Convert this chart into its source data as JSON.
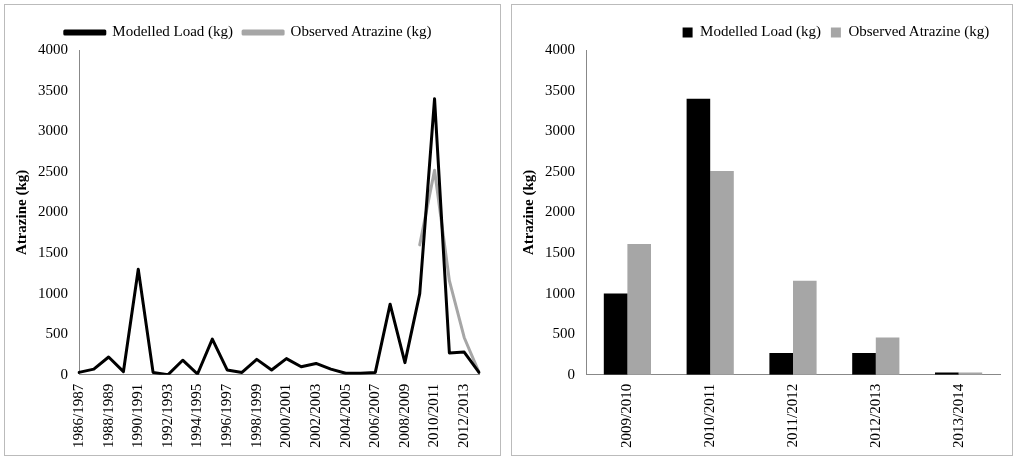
{
  "chart_data": [
    {
      "type": "line",
      "ylabel": "Atrazine (kg)",
      "categories": [
        "1986/1987",
        null,
        "1988/1989",
        null,
        "1990/1991",
        null,
        "1992/1993",
        null,
        "1994/1995",
        null,
        "1996/1997",
        null,
        "1998/1999",
        null,
        "2000/2001",
        null,
        "2002/2003",
        null,
        "2004/2005",
        null,
        "2006/2007",
        null,
        "2008/2009",
        null,
        "2010/2011",
        null,
        "2012/2013",
        null
      ],
      "series": [
        {
          "name": "Modelled Load (kg)",
          "color": "#000000",
          "values": [
            30,
            70,
            220,
            40,
            1300,
            30,
            0,
            180,
            10,
            440,
            60,
            30,
            190,
            60,
            200,
            100,
            140,
            70,
            20,
            20,
            30,
            870,
            150,
            1000,
            3400,
            270,
            280,
            30
          ]
        },
        {
          "name": "Observed Atrazine (kg)",
          "color": "#a6a6a6",
          "values": [
            null,
            null,
            null,
            null,
            null,
            null,
            null,
            null,
            null,
            null,
            null,
            null,
            null,
            null,
            null,
            null,
            null,
            null,
            null,
            null,
            null,
            null,
            null,
            1600,
            2520,
            1160,
            460,
            30
          ]
        }
      ],
      "ylim": [
        0,
        4000
      ],
      "yticks": [
        0,
        500,
        1000,
        1500,
        2000,
        2500,
        3000,
        3500,
        4000
      ],
      "grid": false,
      "legend": "top",
      "marker": "none",
      "line_style": "solid"
    },
    {
      "type": "bar",
      "ylabel": "Atrazine (kg)",
      "categories": [
        "2009/2010",
        "2010/2011",
        "2011/2012",
        "2012/2013",
        "2013/2014"
      ],
      "series": [
        {
          "name": "Modelled Load (kg)",
          "color": "#000000",
          "values": [
            1000,
            3400,
            270,
            270,
            30
          ]
        },
        {
          "name": "Observed Atrazine (kg)",
          "color": "#a6a6a6",
          "values": [
            1610,
            2510,
            1160,
            460,
            30
          ]
        }
      ],
      "ylim": [
        0,
        4000
      ],
      "yticks": [
        0,
        500,
        1000,
        1500,
        2000,
        2500,
        3000,
        3500,
        4000
      ],
      "grid": false,
      "legend": "top right"
    }
  ]
}
